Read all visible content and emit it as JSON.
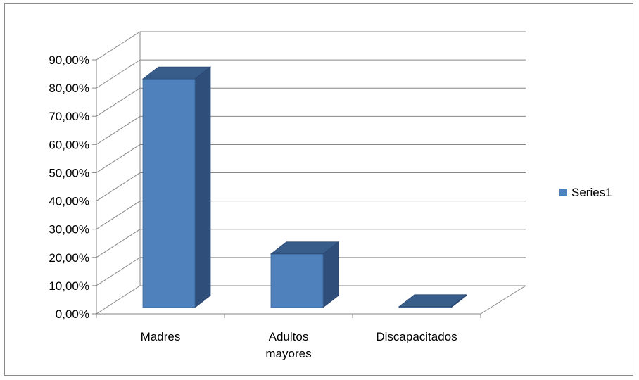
{
  "chart_data": {
    "type": "bar",
    "categories": [
      [
        "Madres"
      ],
      [
        "Adultos",
        "mayores"
      ],
      [
        "Discapacitados"
      ]
    ],
    "series": [
      {
        "name": "Series1",
        "values": [
          0.81,
          0.19,
          0.003
        ],
        "color": "#4F81BD"
      }
    ],
    "ylim": [
      0,
      0.9
    ],
    "yticks": [
      "0,00%",
      "10,00%",
      "20,00%",
      "30,00%",
      "40,00%",
      "50,00%",
      "60,00%",
      "70,00%",
      "80,00%",
      "90,00%"
    ],
    "grid": true,
    "style": "3d-column",
    "legend": {
      "position": "right"
    },
    "colors": {
      "front": "#4F81BD",
      "top": "#385D8A",
      "side": "#2F4F7A",
      "gridline": "#868686"
    }
  }
}
